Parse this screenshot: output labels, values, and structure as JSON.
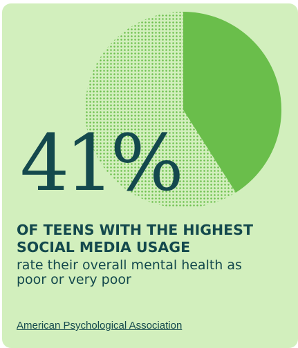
{
  "chart_data": {
    "type": "pie",
    "values": [
      41,
      59
    ],
    "highlight_value": 41,
    "highlight_color": "#6abe4b",
    "remainder_style": "dotted",
    "remainder_dot_color": "#6abe4b",
    "big_stat": "41%"
  },
  "headline": "OF TEENS WITH THE HIGHEST SOCIAL MEDIA USAGE",
  "subtext": "rate their overall mental health as poor or very poor",
  "source": "American Psychological Association",
  "colors": {
    "card_background": "#d2efbd",
    "text": "#14494d",
    "accent": "#6abe4b"
  }
}
